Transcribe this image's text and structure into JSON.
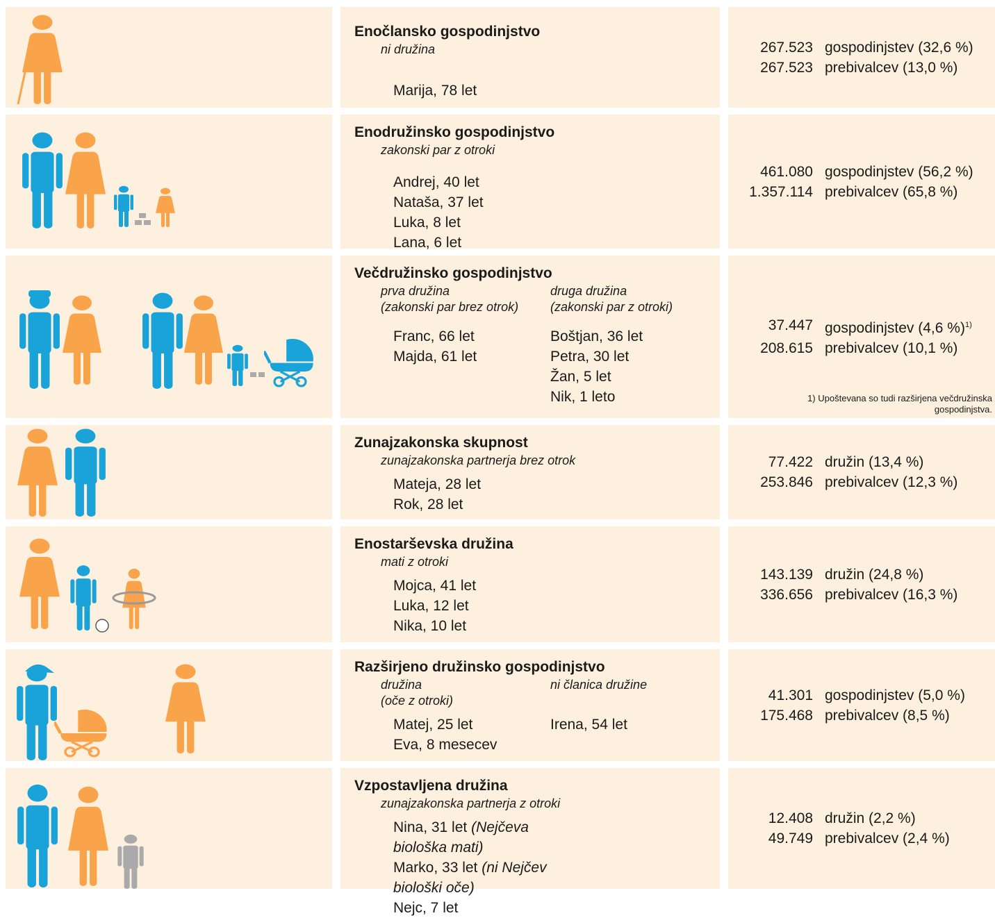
{
  "rows": [
    {
      "title": "Enočlansko gospodinjstvo",
      "subtitle": "ni družina",
      "groups": [
        {
          "people": [
            "Marija, 78 let"
          ]
        }
      ],
      "stats": [
        {
          "number": "267.523",
          "label": "gospodinjstev (32,6 %)"
        },
        {
          "number": "267.523",
          "label": "prebivalcev (13,0 %)"
        }
      ]
    },
    {
      "title": "Enodružinsko gospodinjstvo",
      "subtitle": "zakonski par z otroki",
      "groups": [
        {
          "people": [
            "Andrej, 40 let",
            "Nataša, 37 let",
            "Luka, 8 let",
            "Lana, 6 let"
          ]
        }
      ],
      "stats": [
        {
          "number": "461.080",
          "label": "gospodinjstev (56,2 %)"
        },
        {
          "number": "1.357.114",
          "label": "prebivalcev (65,8 %)"
        }
      ]
    },
    {
      "title": "Večdružinsko gospodinjstvo",
      "groups": [
        {
          "heading": [
            "prva družina",
            "(zakonski par brez otrok)"
          ],
          "people": [
            "Franc, 66 let",
            "Majda, 61 let"
          ]
        },
        {
          "heading": [
            "druga družina",
            "(zakonski par z otroki)"
          ],
          "people": [
            "Boštjan, 36 let",
            "Petra, 30 let",
            "Žan, 5 let",
            "Nik, 1 leto"
          ]
        }
      ],
      "stats": [
        {
          "number": "37.447",
          "label": "gospodinjstev (4,6 %)",
          "note": "1)"
        },
        {
          "number": "208.615",
          "label": "prebivalcev (10,1 %)"
        }
      ],
      "footnote": "1) Upoštevana so tudi razširjena večdružinska gospodinjstva."
    },
    {
      "title": "Zunajzakonska skupnost",
      "subtitle": "zunajzakonska partnerja brez otrok",
      "groups": [
        {
          "people": [
            "Mateja, 28 let",
            "Rok, 28 let"
          ]
        }
      ],
      "stats": [
        {
          "number": "77.422",
          "label": "družin (13,4 %)"
        },
        {
          "number": "253.846",
          "label": "prebivalcev (12,3 %)"
        }
      ]
    },
    {
      "title": "Enostarševska družina",
      "subtitle": "mati z otroki",
      "groups": [
        {
          "people": [
            "Mojca, 41 let",
            "Luka, 12 let",
            "Nika, 10 let"
          ]
        }
      ],
      "stats": [
        {
          "number": "143.139",
          "label": "družin (24,8 %)"
        },
        {
          "number": "336.656",
          "label": "prebivalcev (16,3 %)"
        }
      ]
    },
    {
      "title": "Razširjeno družinsko gospodinjstvo",
      "groups": [
        {
          "heading": [
            "družina",
            "(oče z otroki)"
          ],
          "people": [
            "Matej, 25 let",
            "Eva, 8 mesecev"
          ]
        },
        {
          "heading": [
            "ni članica družine"
          ],
          "people": [
            "Irena, 54 let"
          ]
        }
      ],
      "stats": [
        {
          "number": "41.301",
          "label": "gospodinjstev (5,0 %)"
        },
        {
          "number": "175.468",
          "label": "prebivalcev (8,5 %)"
        }
      ]
    },
    {
      "title": "Vzpostavljena družina",
      "subtitle": "zunajzakonska partnerja z otroki",
      "groups": [
        {
          "people": [
            {
              "name": "Nina, 31 let",
              "note": "(Nejčeva biološka mati)"
            },
            {
              "name": "Marko, 33 let",
              "note": "(ni Nejčev biološki oče)"
            },
            "Nejc, 7 let"
          ]
        }
      ],
      "stats": [
        {
          "number": "12.408",
          "label": "družin (2,2 %)"
        },
        {
          "number": "49.749",
          "label": "prebivalcev (2,4 %)"
        }
      ]
    }
  ]
}
